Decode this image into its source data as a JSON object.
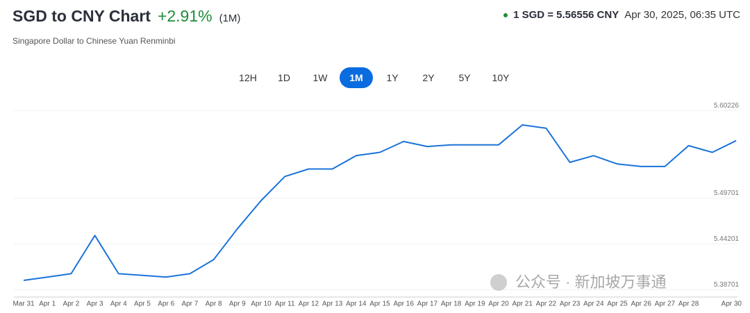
{
  "header": {
    "title": "SGD to CNY Chart",
    "change": "+2.91%",
    "period": "(1M)",
    "subtitle": "Singapore Dollar to Chinese Yuan Renminbi",
    "rate": "1 SGD = 5.56556 CNY",
    "timestamp": "Apr 30, 2025, 06:35 UTC"
  },
  "ranges": [
    "12H",
    "1D",
    "1W",
    "1M",
    "1Y",
    "2Y",
    "5Y",
    "10Y"
  ],
  "active_range": "1M",
  "watermark": "公众号 · 新加坡万事通",
  "chart_data": {
    "type": "line",
    "categories": [
      "Mar 31",
      "Apr 1",
      "Apr 2",
      "Apr 3",
      "Apr 4",
      "Apr 5",
      "Apr 6",
      "Apr 7",
      "Apr 8",
      "Apr 9",
      "Apr 10",
      "Apr 11",
      "Apr 12",
      "Apr 13",
      "Apr 14",
      "Apr 15",
      "Apr 16",
      "Apr 17",
      "Apr 18",
      "Apr 19",
      "Apr 20",
      "Apr 21",
      "Apr 22",
      "Apr 23",
      "Apr 24",
      "Apr 25",
      "Apr 26",
      "Apr 27",
      "Apr 28",
      null,
      "Apr 30"
    ],
    "series": [
      {
        "name": "SGD/CNY",
        "color": "#1a73d9",
        "values": [
          5.398,
          5.402,
          5.406,
          5.452,
          5.406,
          5.404,
          5.402,
          5.406,
          5.423,
          5.46,
          5.494,
          5.523,
          5.532,
          5.532,
          5.548,
          5.552,
          5.565,
          5.559,
          5.561,
          5.561,
          5.561,
          5.585,
          5.581,
          5.54,
          5.548,
          5.538,
          5.535,
          5.535,
          5.56,
          5.552,
          5.566
        ]
      }
    ],
    "ylim": [
      5.378,
      5.61
    ],
    "yticks": [
      5.38701,
      5.44201,
      5.49701,
      5.60226
    ],
    "grid": true
  }
}
